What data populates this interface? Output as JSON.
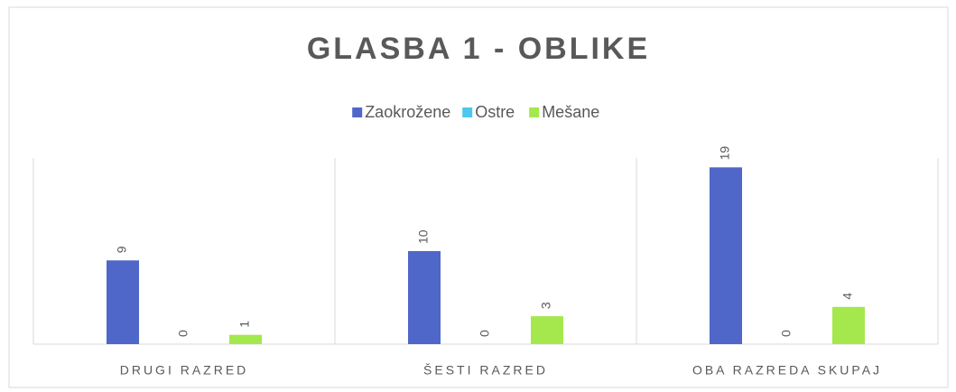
{
  "chart_data": {
    "type": "bar",
    "title": "GLASBA 1 - OBLIKE",
    "categories": [
      "DRUGI RAZRED",
      "ŠESTI RAZRED",
      "OBA RAZREDA SKUPAJ"
    ],
    "series": [
      {
        "name": "Zaokrožene",
        "color": "#4f67c9",
        "values": [
          9,
          10,
          19
        ]
      },
      {
        "name": "Ostre",
        "color": "#4dc7eb",
        "values": [
          0,
          0,
          0
        ]
      },
      {
        "name": "Mešane",
        "color": "#a4e84d",
        "values": [
          1,
          3,
          4
        ]
      }
    ],
    "ylim": [
      0,
      20
    ],
    "legend": "top"
  }
}
